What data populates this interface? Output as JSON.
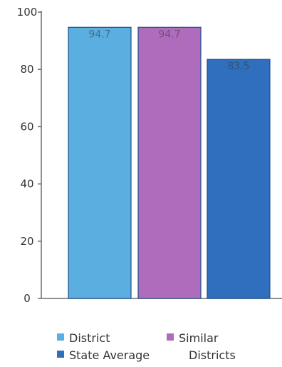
{
  "chart_data": {
    "type": "bar",
    "categories": [
      "District",
      "Similar Districts",
      "State Average"
    ],
    "values": [
      94.7,
      94.7,
      83.5
    ],
    "data_labels": [
      "94.7",
      "94.7",
      "83.5"
    ],
    "colors": [
      "#5aaee0",
      "#b06cbc",
      "#2f6fbe"
    ],
    "title": "",
    "xlabel": "",
    "ylabel": "",
    "ylim": [
      0,
      100
    ],
    "yticks": [
      0,
      20,
      40,
      60,
      80,
      100
    ],
    "grid": false,
    "legend_position": "bottom",
    "legend": [
      {
        "label": "District",
        "color": "#5aaee0"
      },
      {
        "label": "Similar",
        "label_line2": "Districts",
        "color": "#b06cbc"
      },
      {
        "label": "State Average",
        "color": "#2f6fbe"
      }
    ]
  }
}
